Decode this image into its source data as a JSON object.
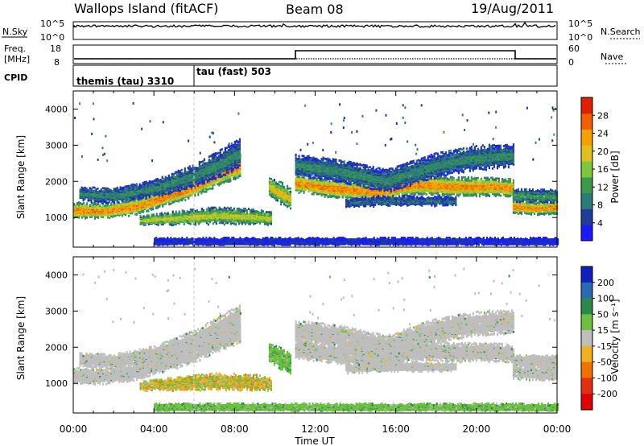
{
  "header": {
    "site": "Wallops Island (fitACF)",
    "beam": "Beam 08",
    "date": "19/Aug/2011"
  },
  "aux_panels": {
    "nsky_label": "N.Sky",
    "nsky_ticks": [
      "10^5",
      "10^0"
    ],
    "nsky_ticks_right": [
      "10^5",
      "10^0"
    ],
    "nsearch_label": "N.Search",
    "freq_label_line1": "Freq.",
    "freq_label_line2": "[MHz]",
    "freq_ticks": [
      "18",
      "8"
    ],
    "nave_ticks": [
      "60",
      "0"
    ],
    "nave_label": "Nave",
    "cpid_label": "CPID",
    "cpid_modes": [
      {
        "name": "themis (tau) 3310",
        "start_hour": 0,
        "end_hour": 6
      },
      {
        "name": "tau (fast) 503",
        "start_hour": 6,
        "end_hour": 24
      }
    ]
  },
  "chart_data": [
    {
      "type": "heatmap",
      "name": "power",
      "x": {
        "label": "Time UT",
        "range_hours": [
          0,
          24
        ],
        "ticks": [
          "00:00",
          "04:00",
          "08:00",
          "12:00",
          "16:00",
          "20:00",
          "00:00"
        ]
      },
      "y": {
        "label": "Slant Range [km]",
        "range": [
          180,
          4500
        ],
        "ticks": [
          1000,
          2000,
          3000,
          4000
        ]
      },
      "colorbar": {
        "label": "Power [dB]",
        "range": [
          0,
          32
        ],
        "ticks": [
          4,
          8,
          12,
          16,
          20,
          24,
          28
        ],
        "colors": [
          "#1a1aff",
          "#1f3d99",
          "#2c7a7a",
          "#3a9a4a",
          "#7cc73a",
          "#e0c020",
          "#f5a000",
          "#f06000",
          "#e02000"
        ]
      },
      "echo_bands": [
        {
          "t": [
            0,
            1.5,
            3,
            4.5,
            6,
            7,
            8.3
          ],
          "center": [
            1200,
            1180,
            1300,
            1560,
            1850,
            2150,
            2450
          ],
          "half_width": [
            140,
            130,
            150,
            160,
            180,
            200,
            220
          ],
          "power": 24
        },
        {
          "t": [
            0.3,
            2,
            4,
            6,
            7.5,
            8.3
          ],
          "center": [
            1650,
            1600,
            1800,
            2150,
            2550,
            2800
          ],
          "half_width": [
            120,
            130,
            150,
            200,
            250,
            250
          ],
          "power": 10
        },
        {
          "t": [
            3.3,
            5,
            7,
            9,
            9.8
          ],
          "center": [
            920,
            980,
            1050,
            1020,
            970
          ],
          "half_width": [
            80,
            120,
            150,
            140,
            110
          ],
          "power": 18
        },
        {
          "t": [
            9.7,
            10.2,
            10.8
          ],
          "center": [
            1850,
            1700,
            1500
          ],
          "half_width": [
            160,
            200,
            180
          ],
          "power": 20
        },
        {
          "t": [
            11,
            13,
            15,
            17,
            19,
            21,
            21.8
          ],
          "center": [
            1950,
            1800,
            1700,
            1900,
            1850,
            1850,
            1800
          ],
          "half_width": [
            160,
            170,
            170,
            170,
            170,
            160,
            160
          ],
          "power": 24
        },
        {
          "t": [
            11,
            13,
            15.5,
            18,
            20,
            21.8
          ],
          "center": [
            2450,
            2300,
            2000,
            2450,
            2650,
            2700
          ],
          "half_width": [
            180,
            200,
            200,
            220,
            220,
            200
          ],
          "power": 10
        },
        {
          "t": [
            13.5,
            15,
            17,
            19
          ],
          "center": [
            1400,
            1450,
            1450,
            1450
          ],
          "half_width": [
            80,
            90,
            90,
            80
          ],
          "power": 8
        },
        {
          "t": [
            21.8,
            23,
            24
          ],
          "center": [
            1300,
            1250,
            1300
          ],
          "half_width": [
            120,
            110,
            120
          ],
          "power": 24
        },
        {
          "t": [
            21.8,
            24
          ],
          "center": [
            1600,
            1580
          ],
          "half_width": [
            120,
            120
          ],
          "power": 12
        },
        {
          "t": [
            4,
            12,
            20,
            24
          ],
          "center": [
            330,
            330,
            330,
            330
          ],
          "half_width": [
            70,
            70,
            70,
            70
          ],
          "power": 4
        }
      ],
      "gap_hours": [
        8.35,
        9.7
      ]
    },
    {
      "type": "heatmap",
      "name": "velocity",
      "x": {
        "label": "Time UT",
        "range_hours": [
          0,
          24
        ],
        "ticks": [
          "00:00",
          "04:00",
          "08:00",
          "12:00",
          "16:00",
          "20:00",
          "00:00"
        ]
      },
      "y": {
        "label": "Slant Range [km]",
        "range": [
          180,
          4500
        ],
        "ticks": [
          1000,
          2000,
          3000,
          4000
        ]
      },
      "colorbar": {
        "label": "Velocity [m s⁻¹]",
        "ticks": [
          "200",
          "100",
          "50",
          "15",
          "-15",
          "-50",
          "-100",
          "-200"
        ],
        "colors": [
          "#1020c0",
          "#2a6ab0",
          "#2a8a4a",
          "#6cc040",
          "#bebebe",
          "#f0b020",
          "#f07000",
          "#e03010",
          "#e00000"
        ]
      },
      "echo_classes": [
        {
          "band": 0,
          "class": "ground"
        },
        {
          "band": 1,
          "class": "ground"
        },
        {
          "band": 2,
          "class": "mixed-green-orange"
        },
        {
          "band": 3,
          "class": "green"
        },
        {
          "band": 4,
          "class": "ground"
        },
        {
          "band": 5,
          "class": "ground"
        },
        {
          "band": 6,
          "class": "ground"
        },
        {
          "band": 7,
          "class": "ground"
        },
        {
          "band": 8,
          "class": "ground"
        },
        {
          "band": 9,
          "class": "green"
        }
      ]
    }
  ]
}
